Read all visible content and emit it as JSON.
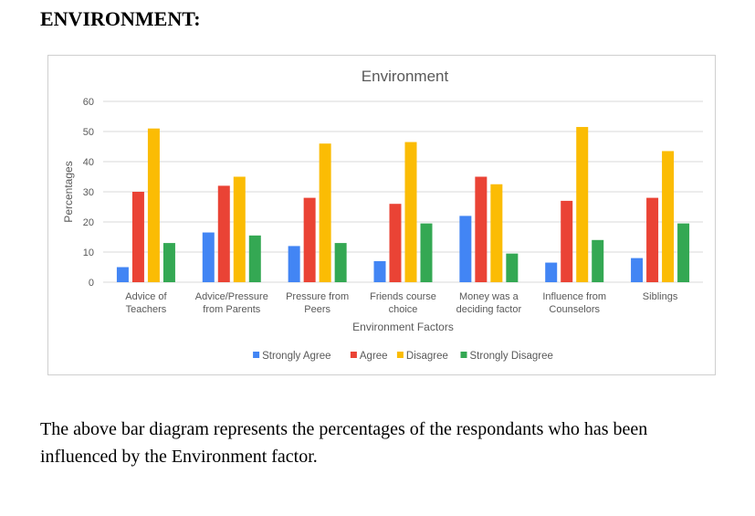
{
  "heading": "ENVIRONMENT:",
  "caption": "The above bar diagram represents the percentages of the respondants who has been influenced by the Environment factor.",
  "colors": {
    "strongly_agree": "#4285f4",
    "agree": "#ea4335",
    "disagree": "#fbbc04",
    "strongly_disagree": "#34a853",
    "grid": "#d9d9d9",
    "text": "#595959"
  },
  "chart_data": {
    "type": "bar",
    "title": "Environment",
    "xlabel": "Environment Factors",
    "ylabel": "Percentages",
    "ylim": [
      0,
      60
    ],
    "yticks": [
      0,
      10,
      20,
      30,
      40,
      50,
      60
    ],
    "grid": true,
    "legend_position": "bottom",
    "categories": [
      [
        "Advice of",
        "Teachers"
      ],
      [
        "Advice/Pressure",
        "from Parents"
      ],
      [
        "Pressure from",
        "Peers"
      ],
      [
        "Friends course",
        "choice"
      ],
      [
        "Money was a",
        "deciding factor"
      ],
      [
        "Influence from",
        "Counselors"
      ],
      [
        "Siblings"
      ]
    ],
    "series": [
      {
        "name": "Strongly Agree",
        "color": "#4285f4",
        "values": [
          5,
          16.5,
          12,
          7,
          22,
          6.5,
          8
        ]
      },
      {
        "name": "Agree",
        "color": "#ea4335",
        "values": [
          30,
          32,
          28,
          26,
          35,
          27,
          28
        ]
      },
      {
        "name": "Disagree",
        "color": "#fbbc04",
        "values": [
          51,
          35,
          46,
          46.5,
          32.5,
          51.5,
          43.5
        ]
      },
      {
        "name": "Strongly Disagree",
        "color": "#34a853",
        "values": [
          13,
          15.5,
          13,
          19.5,
          9.5,
          14,
          19.5
        ]
      }
    ]
  }
}
